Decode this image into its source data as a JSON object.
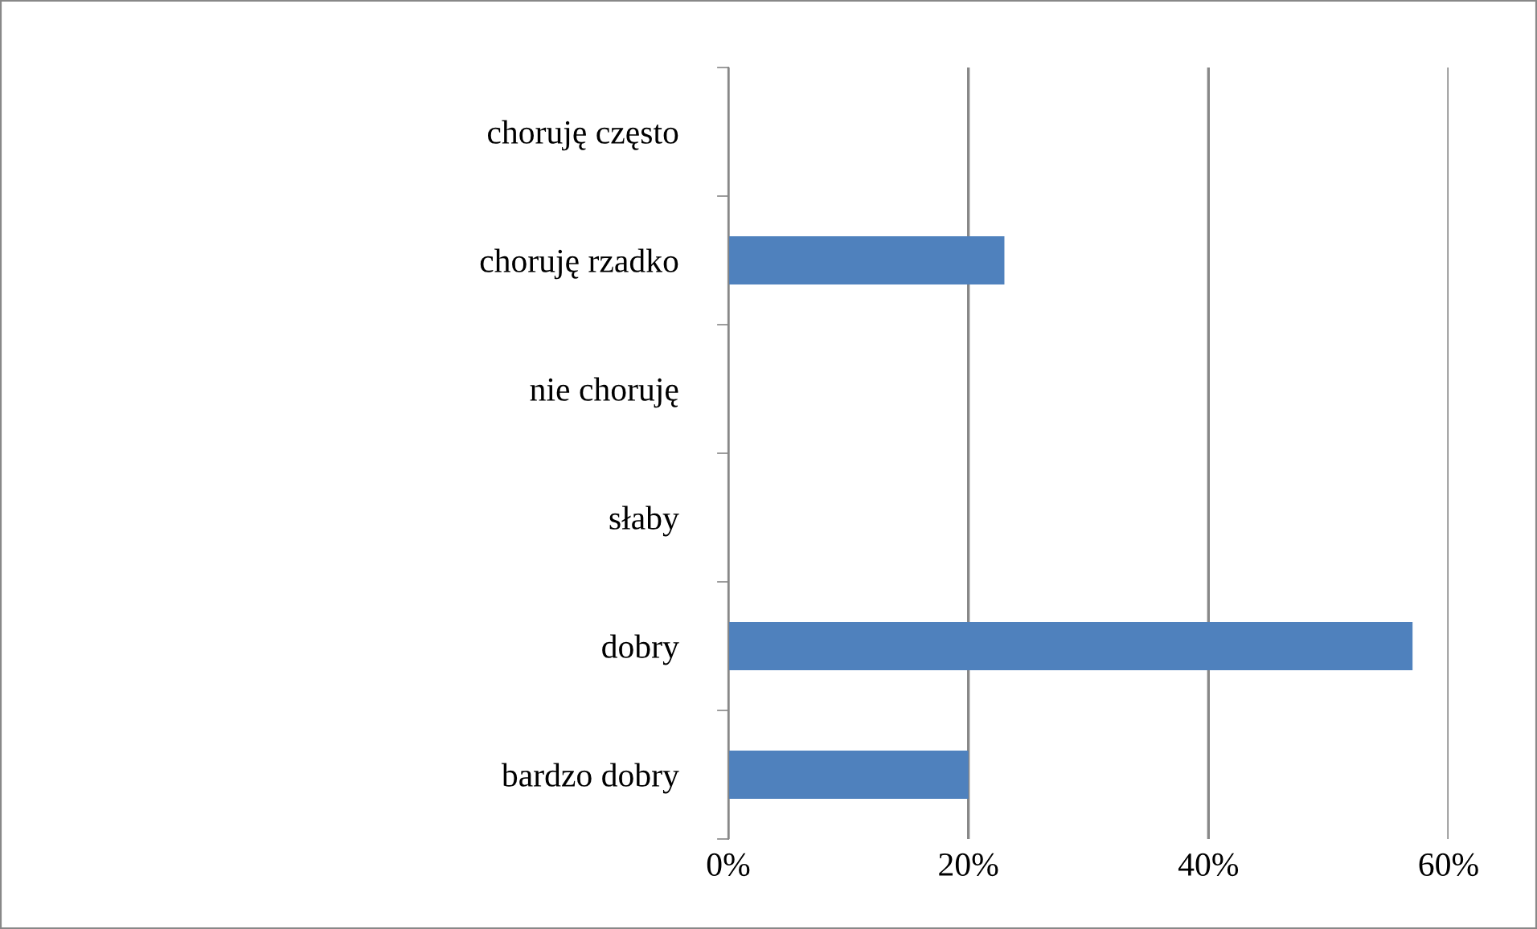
{
  "chart_data": {
    "type": "bar",
    "orientation": "horizontal",
    "categories": [
      "choruję często",
      "choruję rzadko",
      "nie choruję",
      "słaby",
      "dobry",
      "bardzo dobry"
    ],
    "values": [
      0,
      23,
      0,
      0,
      57,
      20
    ],
    "color": "#4f81bd",
    "xlim": [
      0,
      60
    ],
    "xticks": [
      {
        "value": 0,
        "label": "0%"
      },
      {
        "value": 20,
        "label": "20%"
      },
      {
        "value": 40,
        "label": "40%"
      },
      {
        "value": 60,
        "label": "60%"
      }
    ],
    "grid": "x"
  }
}
